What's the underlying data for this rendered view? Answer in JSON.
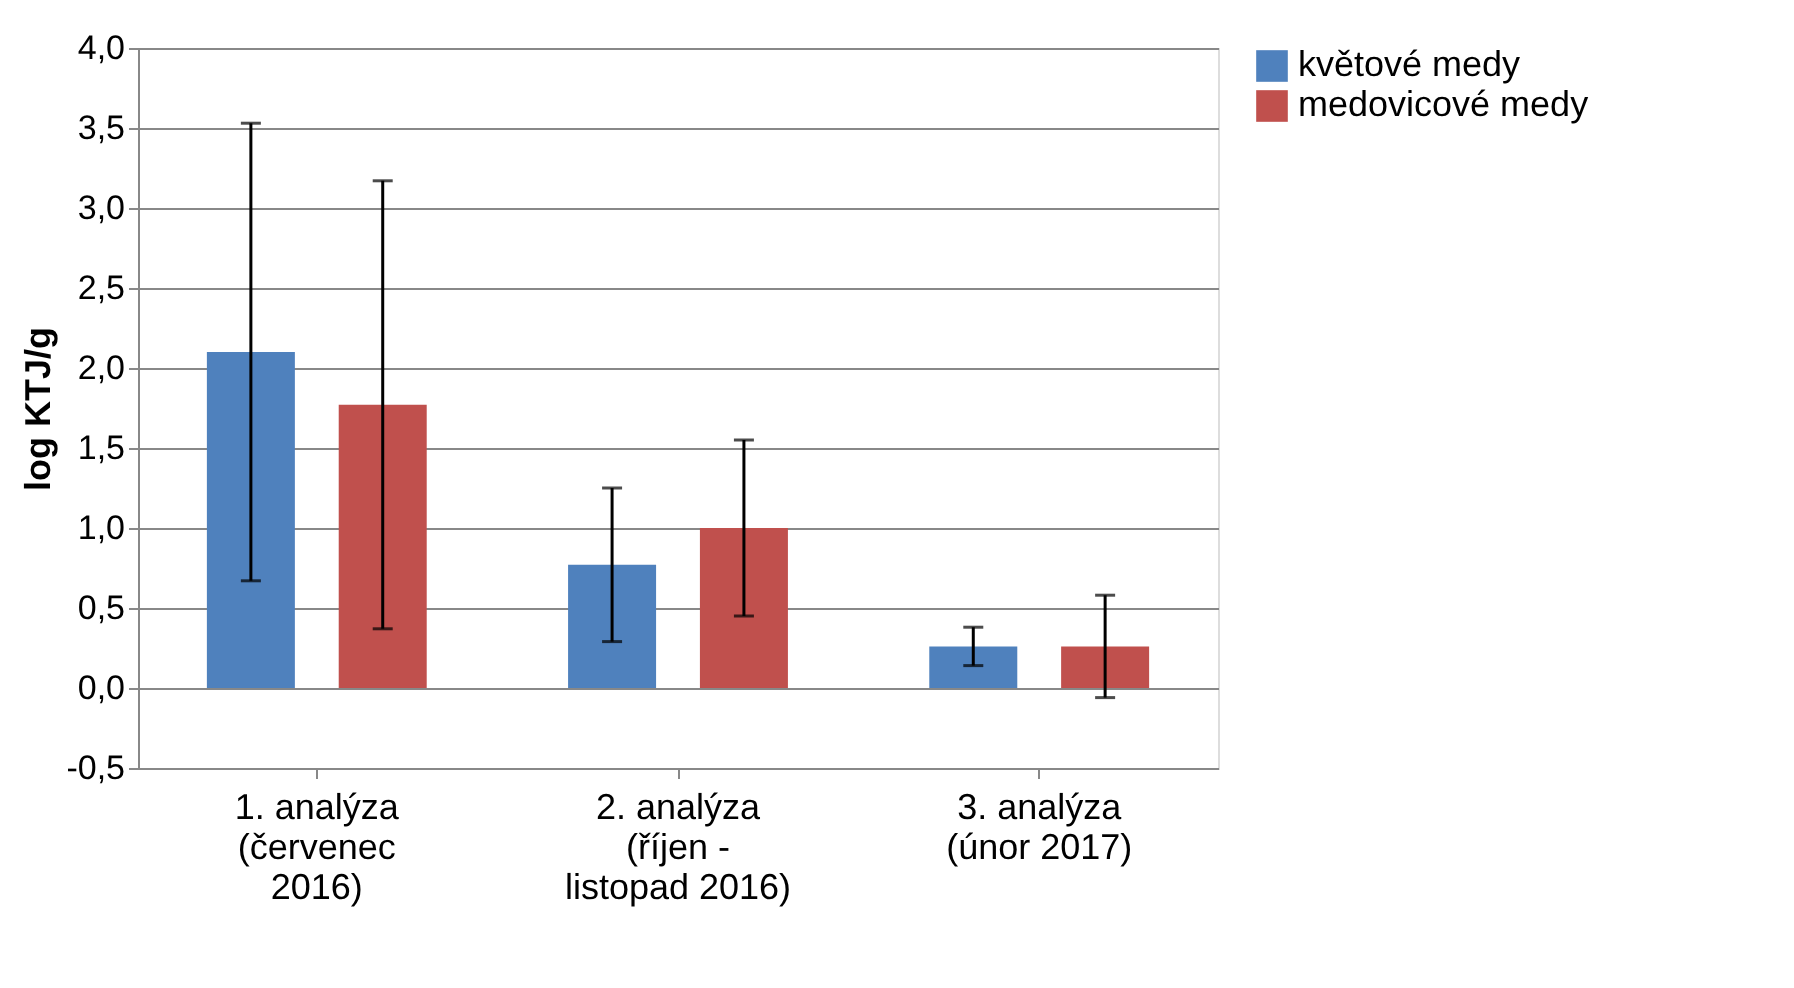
{
  "chart_data": {
    "type": "bar",
    "ylabel": "log KTJ/g",
    "categories": [
      "1. analýza\n(červenec\n2016)",
      "2. analýza\n(říjen -\nlistopad 2016)",
      "3. analýza\n(únor 2017)"
    ],
    "series": [
      {
        "name": "květové medy",
        "color": "#4f81bd",
        "values": [
          2.1,
          0.77,
          0.26
        ],
        "errors": [
          1.43,
          0.48,
          0.12
        ]
      },
      {
        "name": "medovicové medy",
        "color": "#c0504d",
        "values": [
          1.77,
          1.0,
          0.26
        ],
        "errors": [
          1.4,
          0.55,
          0.32
        ]
      }
    ],
    "ylim": [
      -0.5,
      4.0
    ],
    "yticks": [
      {
        "value": -0.5,
        "label": "-0,5"
      },
      {
        "value": 0,
        "label": "0,0"
      },
      {
        "value": 0.5,
        "label": "0,5"
      },
      {
        "value": 1.0,
        "label": "1,0"
      },
      {
        "value": 1.5,
        "label": "1,5"
      },
      {
        "value": 2.0,
        "label": "2,0"
      },
      {
        "value": 2.5,
        "label": "2,5"
      },
      {
        "value": 3.0,
        "label": "3,0"
      },
      {
        "value": 3.5,
        "label": "3,5"
      },
      {
        "value": 4.0,
        "label": "4,0"
      }
    ],
    "grid": "y",
    "legend": "right"
  }
}
